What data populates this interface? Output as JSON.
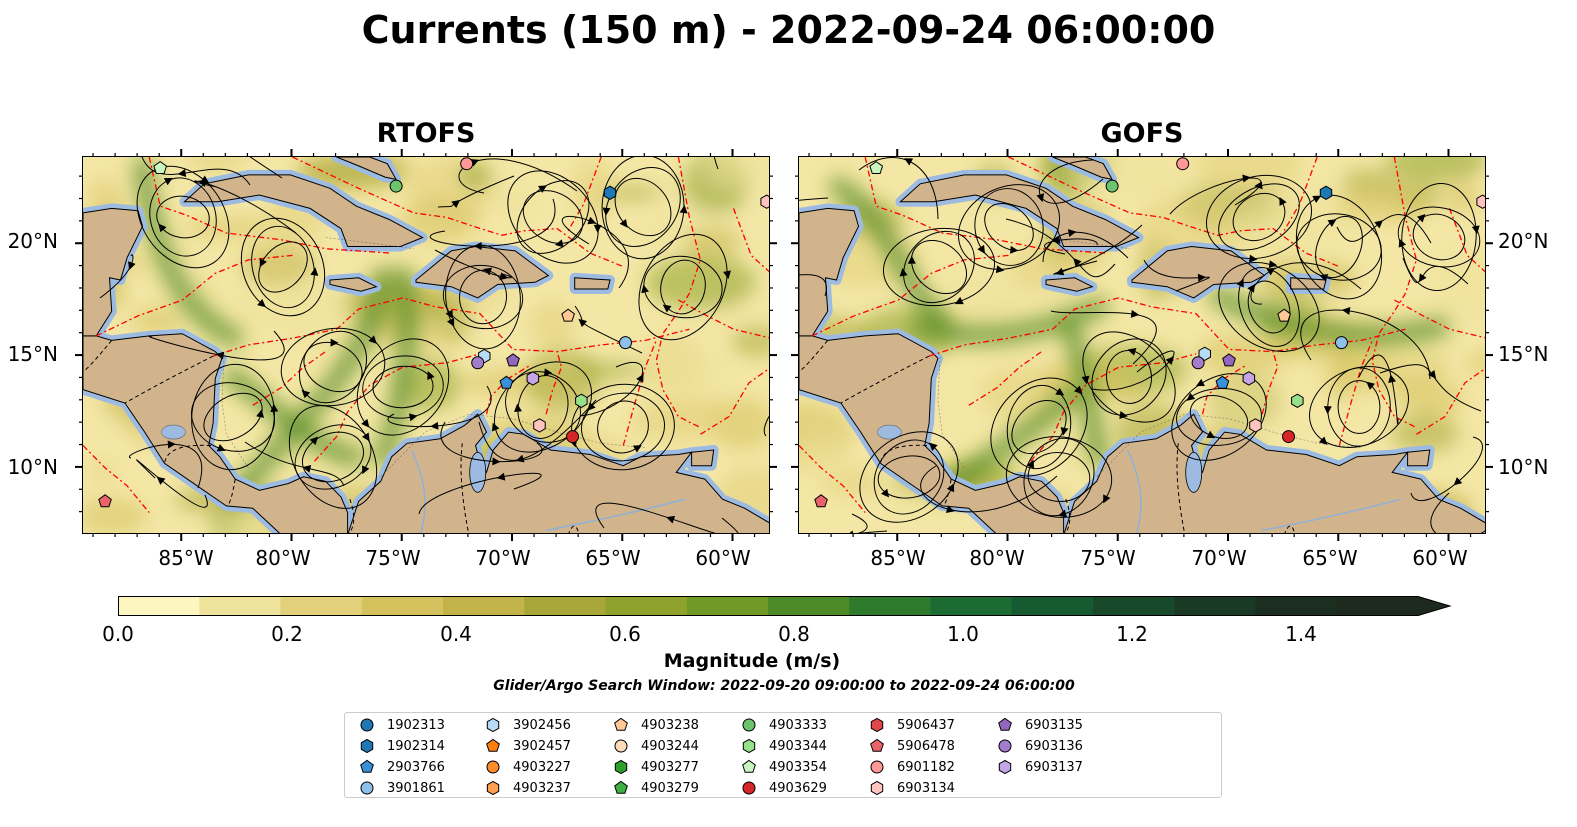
{
  "title": "Currents (150 m) - 2022-09-24 06:00:00",
  "panels": [
    {
      "title": "RTOFS"
    },
    {
      "title": "GOFS"
    }
  ],
  "x_ticks": [
    "85°W",
    "80°W",
    "75°W",
    "70°W",
    "65°W",
    "60°W"
  ],
  "y_ticks": [
    "20°N",
    "15°N",
    "10°N"
  ],
  "colors": {
    "land": "#d2b48c",
    "shallow_water": "#9dbbe0",
    "eez_boundary": "#ff0000",
    "colorbar": [
      "#fdf6c0",
      "#efe29b",
      "#e2d07a",
      "#d5c25e",
      "#c3b44a",
      "#a8a83a",
      "#8ea22c",
      "#6f9a26",
      "#4c8a27",
      "#2e7a2c",
      "#1b6b33",
      "#155a31",
      "#18492b",
      "#1a3a25",
      "#1c2e1f",
      "#1d2a1d"
    ]
  },
  "colorbar": {
    "title": "Magnitude (m/s)",
    "ticks": [
      "0.0",
      "0.2",
      "0.4",
      "0.6",
      "0.8",
      "1.0",
      "1.2",
      "1.4"
    ],
    "min": 0.0,
    "max": 1.6,
    "extend": "max"
  },
  "search_window": "Glider/Argo Search Window: 2022-09-20 09:00:00 to 2022-09-24 06:00:00",
  "legend": [
    {
      "id": "1902313",
      "marker": "circle",
      "color": "#1f77b4"
    },
    {
      "id": "1902314",
      "marker": "hexagon",
      "color": "#1f77b4"
    },
    {
      "id": "2903766",
      "marker": "pentagon",
      "color": "#3a8fd9"
    },
    {
      "id": "3901861",
      "marker": "circle",
      "color": "#8ec1ea"
    },
    {
      "id": "3902456",
      "marker": "hexagon",
      "color": "#b8dcf5"
    },
    {
      "id": "3902457",
      "marker": "pentagon",
      "color": "#ff7f0e"
    },
    {
      "id": "4903227",
      "marker": "circle",
      "color": "#ff8c2a"
    },
    {
      "id": "4903237",
      "marker": "hexagon",
      "color": "#ffa050"
    },
    {
      "id": "4903238",
      "marker": "pentagon",
      "color": "#ffc896"
    },
    {
      "id": "4903244",
      "marker": "circle",
      "color": "#ffdcb8"
    },
    {
      "id": "4903277",
      "marker": "hexagon",
      "color": "#2ca02c"
    },
    {
      "id": "4903279",
      "marker": "pentagon",
      "color": "#3cb043"
    },
    {
      "id": "4903333",
      "marker": "circle",
      "color": "#6cc46c"
    },
    {
      "id": "4903344",
      "marker": "hexagon",
      "color": "#98df8a"
    },
    {
      "id": "4903354",
      "marker": "pentagon",
      "color": "#c8f5c0"
    },
    {
      "id": "4903629",
      "marker": "circle",
      "color": "#d62728"
    },
    {
      "id": "5906437",
      "marker": "hexagon",
      "color": "#e0474a"
    },
    {
      "id": "5906478",
      "marker": "pentagon",
      "color": "#e8646a"
    },
    {
      "id": "6901182",
      "marker": "circle",
      "color": "#ff9896"
    },
    {
      "id": "6903134",
      "marker": "hexagon",
      "color": "#ffc4c0"
    },
    {
      "id": "6903135",
      "marker": "pentagon",
      "color": "#9467bd"
    },
    {
      "id": "6903136",
      "marker": "circle",
      "color": "#a47ccc"
    },
    {
      "id": "6903137",
      "marker": "hexagon",
      "color": "#c5a5e5"
    }
  ],
  "floats": [
    {
      "id": "4903354",
      "rtofs": [
        -86.0,
        23.4
      ],
      "gofs": [
        -86.0,
        23.4
      ]
    },
    {
      "id": "4903333",
      "rtofs": [
        -75.3,
        22.6
      ],
      "gofs": [
        -75.3,
        22.6
      ]
    },
    {
      "id": "6901182",
      "rtofs": [
        -72.1,
        23.6
      ],
      "gofs": [
        -72.1,
        23.6
      ]
    },
    {
      "id": "1902314",
      "rtofs": [
        -65.6,
        22.3
      ],
      "gofs": [
        -65.6,
        22.3
      ]
    },
    {
      "id": "6903134",
      "rtofs": [
        -58.5,
        21.9
      ],
      "gofs": [
        -58.5,
        21.9
      ]
    },
    {
      "id": "4903238",
      "rtofs": [
        -67.5,
        16.8
      ],
      "gofs": [
        -67.5,
        16.8
      ]
    },
    {
      "id": "3901861",
      "rtofs": [
        -64.9,
        15.6
      ],
      "gofs": [
        -64.9,
        15.6
      ]
    },
    {
      "id": "3902456",
      "rtofs": [
        -71.3,
        15.0
      ],
      "gofs": [
        -71.1,
        15.1
      ]
    },
    {
      "id": "6903136",
      "rtofs": [
        -71.6,
        14.7
      ],
      "gofs": [
        -71.4,
        14.7
      ]
    },
    {
      "id": "6903135",
      "rtofs": [
        -70.0,
        14.8
      ],
      "gofs": [
        -70.0,
        14.8
      ]
    },
    {
      "id": "6903137",
      "rtofs": [
        -69.1,
        14.0
      ],
      "gofs": [
        -69.1,
        14.0
      ]
    },
    {
      "id": "2903766",
      "rtofs": [
        -70.3,
        13.8
      ],
      "gofs": [
        -70.3,
        13.8
      ]
    },
    {
      "id": "4903344",
      "rtofs": [
        -66.9,
        13.0
      ],
      "gofs": [
        -66.9,
        13.0
      ]
    },
    {
      "id": "6903134",
      "rtofs": [
        -68.8,
        11.9
      ],
      "gofs": [
        -68.8,
        11.9
      ]
    },
    {
      "id": "4903629",
      "rtofs": [
        -67.3,
        11.4
      ],
      "gofs": [
        -67.3,
        11.4
      ]
    },
    {
      "id": "5906478",
      "rtofs": [
        -88.5,
        8.5
      ],
      "gofs": [
        -88.5,
        8.5
      ]
    }
  ]
}
